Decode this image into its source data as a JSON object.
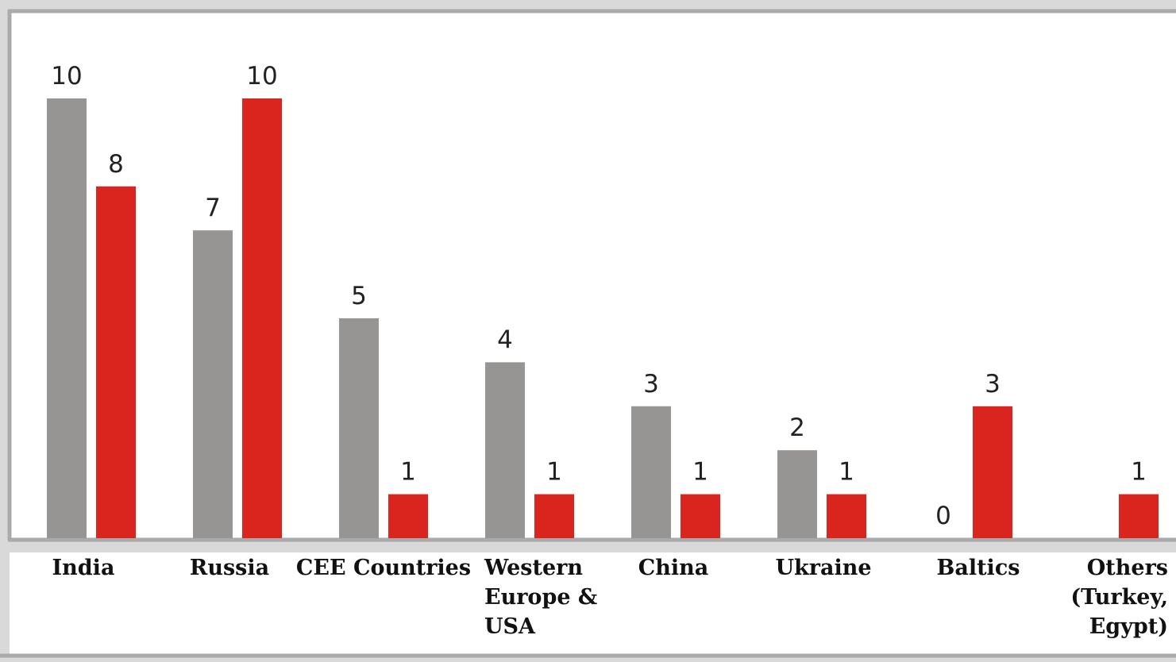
{
  "chart_data": {
    "type": "bar",
    "categories": [
      [
        "India"
      ],
      [
        "Russia"
      ],
      [
        "CEE Countries"
      ],
      [
        "Western",
        "Europe &",
        "USA"
      ],
      [
        "China"
      ],
      [
        "Ukraine"
      ],
      [
        "Baltics"
      ],
      [
        "Others",
        "(Turkey,",
        "Egypt)"
      ]
    ],
    "series": [
      {
        "values": [
          10,
          7,
          5,
          4,
          3,
          2,
          0,
          null
        ],
        "color": "#969594"
      },
      {
        "values": [
          8,
          10,
          1,
          1,
          1,
          1,
          3,
          1
        ],
        "color": "#d9251e"
      }
    ],
    "ylim": [
      0,
      10
    ],
    "grid": false,
    "legend": "none",
    "colors": {
      "plot_background": "#ffffff",
      "label_background": "#ffffff",
      "frame": "#aaaaaa",
      "outer_background": "#d9d9d9"
    }
  }
}
